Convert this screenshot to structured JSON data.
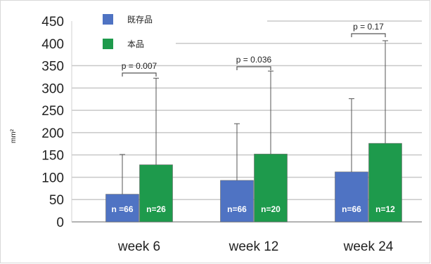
{
  "chart_data": {
    "type": "bar",
    "categories": [
      "week 6",
      "week 12",
      "week 24"
    ],
    "series": [
      {
        "name": "既存品",
        "color": "#4f73c3",
        "values": [
          62,
          93,
          112
        ],
        "error_upper": [
          151,
          220,
          276
        ],
        "n_labels": [
          "n =66",
          "n=66",
          "n=66"
        ]
      },
      {
        "name": "本品",
        "color": "#1e9a4c",
        "values": [
          128,
          152,
          176
        ],
        "error_upper": [
          322,
          338,
          406
        ],
        "n_labels": [
          "n=26",
          "n=20",
          "n=12"
        ]
      }
    ],
    "p_values": [
      "p = 0.007",
      "p = 0.036",
      "p = 0.17"
    ],
    "ylabel": "mm²",
    "ylim": [
      0,
      450
    ],
    "yticks": [
      0,
      50,
      100,
      150,
      200,
      250,
      300,
      350,
      400,
      450
    ],
    "grid": true,
    "legend_position": "top-left"
  }
}
